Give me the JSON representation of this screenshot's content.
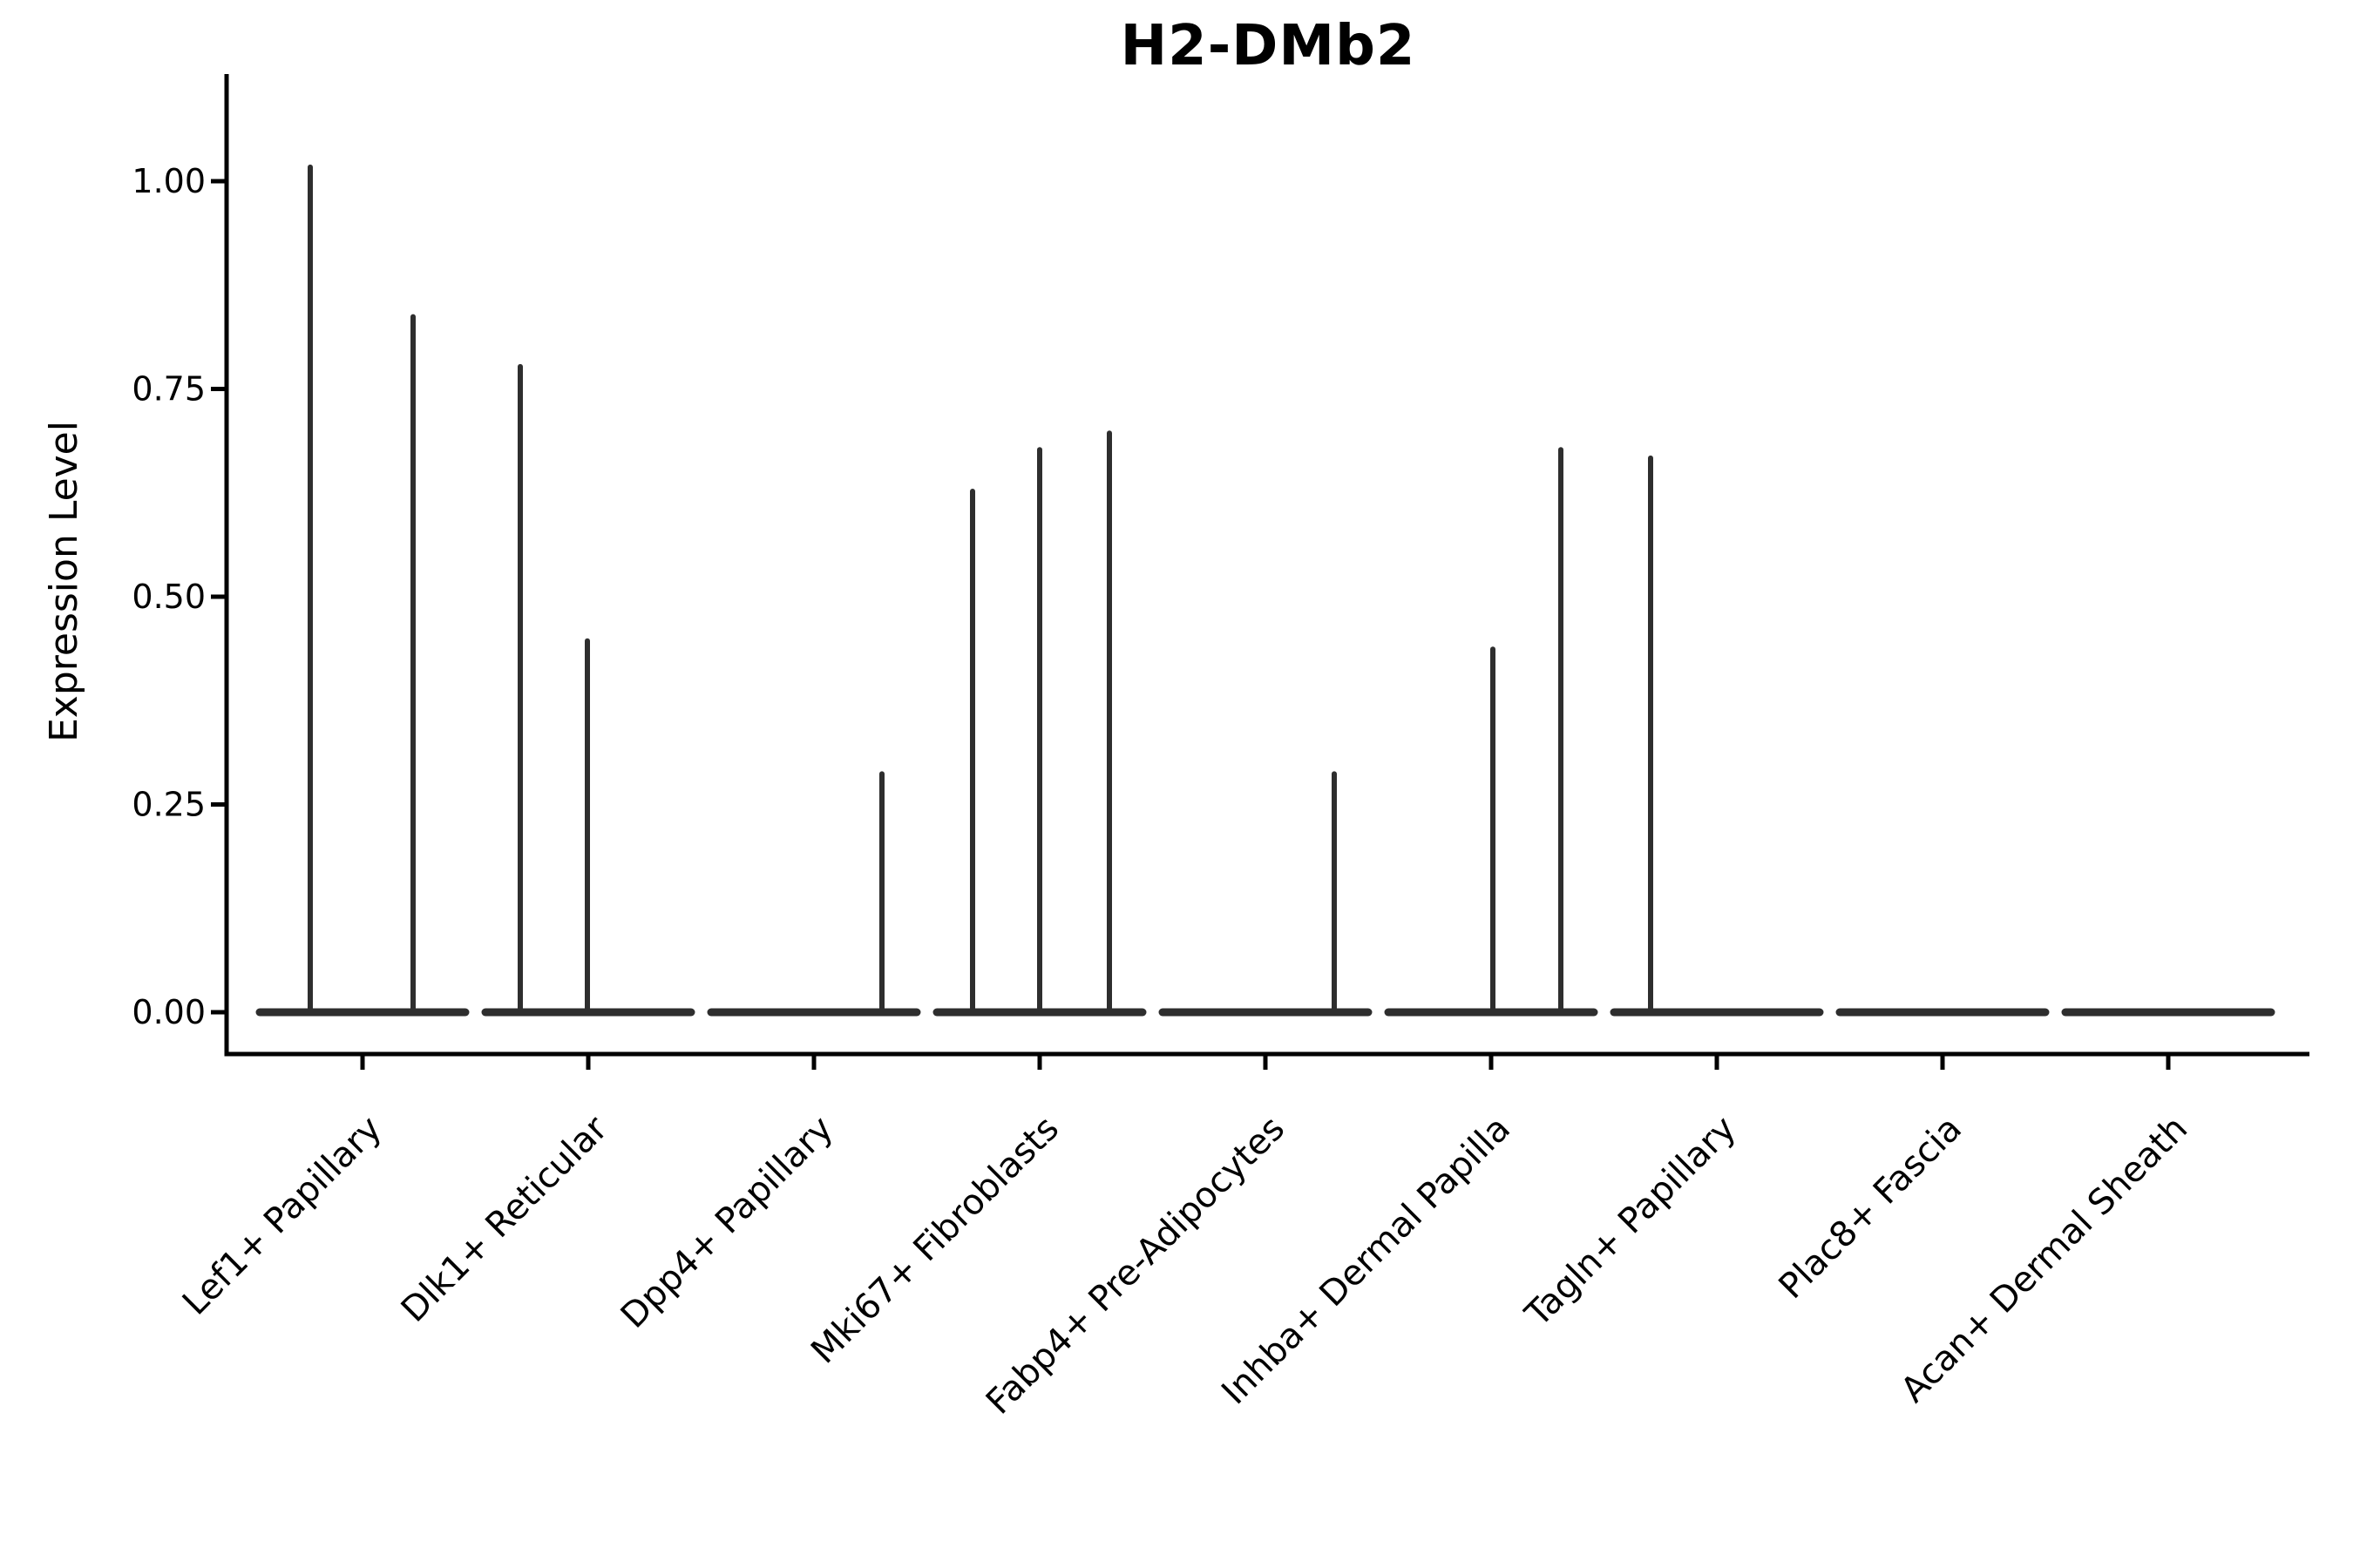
{
  "title": "H2-DMb2",
  "colors": {
    "background": "#ffffff",
    "axis_ink": "#000000",
    "violin_ink": "#2e2e2e"
  },
  "chart_data": {
    "type": "violin",
    "title": "H2-DMb2",
    "xlabel": "",
    "ylabel": "Expression Level",
    "ylim": [
      0,
      1.07
    ],
    "yticks": [
      0,
      0.25,
      0.5,
      0.75,
      1.0
    ],
    "ytick_labels": [
      "0.00",
      "0.25",
      "0.50",
      "0.75",
      "1.00"
    ],
    "grid": false,
    "legend": "none",
    "description": "Each cluster shows a violin collapsed to a flat bar at expression 0 with thin vertical spikes reaching the maximum expression values of the few expressing cells.",
    "categories": [
      "Lef1+ Papillary",
      "Dlk1+ Reticular",
      "Dpp4+ Papillary",
      "Mki67+ Fibroblasts",
      "Fabp4+ Pre-Adipocytes",
      "Inhba+ Dermal Papilla",
      "Tagln+ Papillary",
      "Plac8+ Fascia",
      "Acan+ Dermal Sheath"
    ],
    "series": [
      {
        "category": "Lef1+ Papillary",
        "base_value": 0,
        "spikes": [
          {
            "value": 1.02,
            "dx": -60
          },
          {
            "value": 0.84,
            "dx": 58
          }
        ]
      },
      {
        "category": "Dlk1+ Reticular",
        "base_value": 0,
        "spikes": [
          {
            "value": 0.78,
            "dx": -78
          },
          {
            "value": 0.45,
            "dx": -1
          }
        ]
      },
      {
        "category": "Dpp4+ Papillary",
        "base_value": 0,
        "spikes": [
          {
            "value": 0.29,
            "dx": 78
          }
        ]
      },
      {
        "category": "Mki67+ Fibroblasts",
        "base_value": 0,
        "spikes": [
          {
            "value": 0.63,
            "dx": -77
          },
          {
            "value": 0.68,
            "dx": 0
          },
          {
            "value": 0.7,
            "dx": 80
          }
        ]
      },
      {
        "category": "Fabp4+ Pre-Adipocytes",
        "base_value": 0,
        "spikes": [
          {
            "value": 0.29,
            "dx": 79
          }
        ]
      },
      {
        "category": "Inhba+ Dermal Papilla",
        "base_value": 0,
        "spikes": [
          {
            "value": 0.44,
            "dx": 2
          },
          {
            "value": 0.68,
            "dx": 80
          }
        ]
      },
      {
        "category": "Tagln+ Papillary",
        "base_value": 0,
        "spikes": [
          {
            "value": 0.67,
            "dx": -76
          }
        ]
      },
      {
        "category": "Plac8+ Fascia",
        "base_value": 0,
        "spikes": []
      },
      {
        "category": "Acan+ Dermal Sheath",
        "base_value": 0,
        "spikes": []
      }
    ]
  }
}
